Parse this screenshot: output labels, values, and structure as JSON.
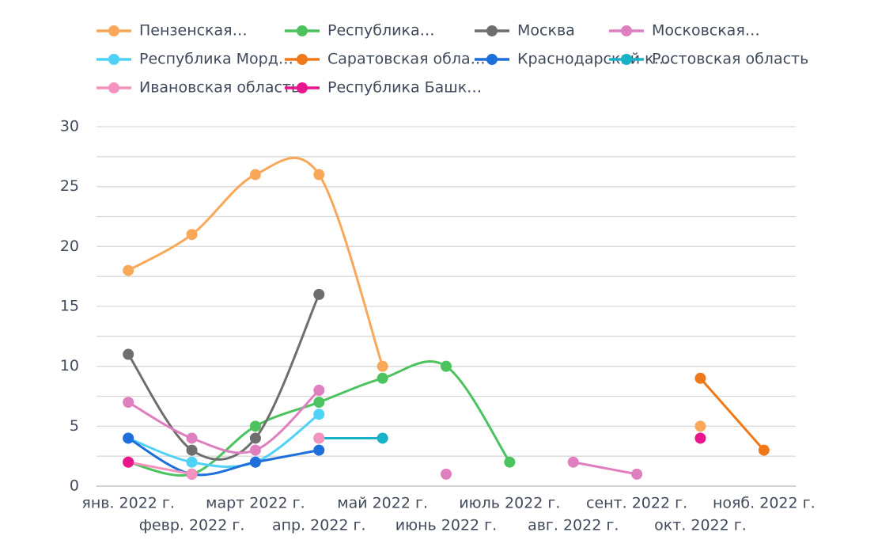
{
  "chart_data": {
    "type": "line",
    "smooth": true,
    "categories": [
      "янв. 2022 г.",
      "февр. 2022 г.",
      "март 2022 г.",
      "апр. 2022 г.",
      "май 2022 г.",
      "июнь 2022 г.",
      "июль 2022 г.",
      "авг. 2022 г.",
      "сент. 2022 г.",
      "окт. 2022 г.",
      "нояб. 2022 г."
    ],
    "series": [
      {
        "name": "Пензенская…",
        "color": "#f9a85a",
        "values": [
          18,
          21,
          26,
          26,
          10,
          null,
          null,
          null,
          null,
          5,
          null
        ]
      },
      {
        "name": "Республика…",
        "color": "#4cc35e",
        "values": [
          2,
          1,
          5,
          7,
          9,
          10,
          2,
          null,
          null,
          null,
          null
        ]
      },
      {
        "name": "Москва",
        "color": "#6e6e6e",
        "values": [
          11,
          3,
          4,
          16,
          null,
          null,
          null,
          null,
          null,
          null,
          null
        ]
      },
      {
        "name": "Московская…",
        "color": "#e07fc0",
        "values": [
          7,
          4,
          3,
          8,
          null,
          1,
          null,
          2,
          1,
          null,
          null
        ]
      },
      {
        "name": "Республика Морд…",
        "color": "#4fd2f5",
        "values": [
          4,
          2,
          2,
          6,
          null,
          null,
          null,
          null,
          null,
          null,
          null
        ]
      },
      {
        "name": "Саратовская обла…",
        "color": "#f07818",
        "values": [
          null,
          null,
          null,
          null,
          null,
          null,
          null,
          null,
          null,
          9,
          3
        ]
      },
      {
        "name": "Краснодарский к…",
        "color": "#1e6fdc",
        "values": [
          4,
          1,
          2,
          3,
          null,
          null,
          null,
          null,
          null,
          null,
          null
        ]
      },
      {
        "name": "Ростовская область",
        "color": "#18b2c8",
        "values": [
          null,
          null,
          null,
          4,
          4,
          null,
          null,
          null,
          null,
          null,
          null
        ]
      },
      {
        "name": "Ивановская область",
        "color": "#f493bd",
        "values": [
          2,
          1,
          null,
          4,
          null,
          null,
          null,
          null,
          null,
          null,
          null
        ]
      },
      {
        "name": "Республика Башк…",
        "color": "#e8158c",
        "values": [
          2,
          null,
          null,
          null,
          null,
          null,
          null,
          null,
          null,
          4,
          null
        ]
      }
    ],
    "ylim": [
      0,
      30
    ],
    "yticks": [
      0,
      5,
      10,
      15,
      20,
      25,
      30
    ],
    "grid_lines": [
      0,
      2.5,
      5,
      7.5,
      10,
      12.5,
      15,
      17.5,
      20,
      22.5,
      25,
      27.5,
      30
    ],
    "legend": "top"
  }
}
